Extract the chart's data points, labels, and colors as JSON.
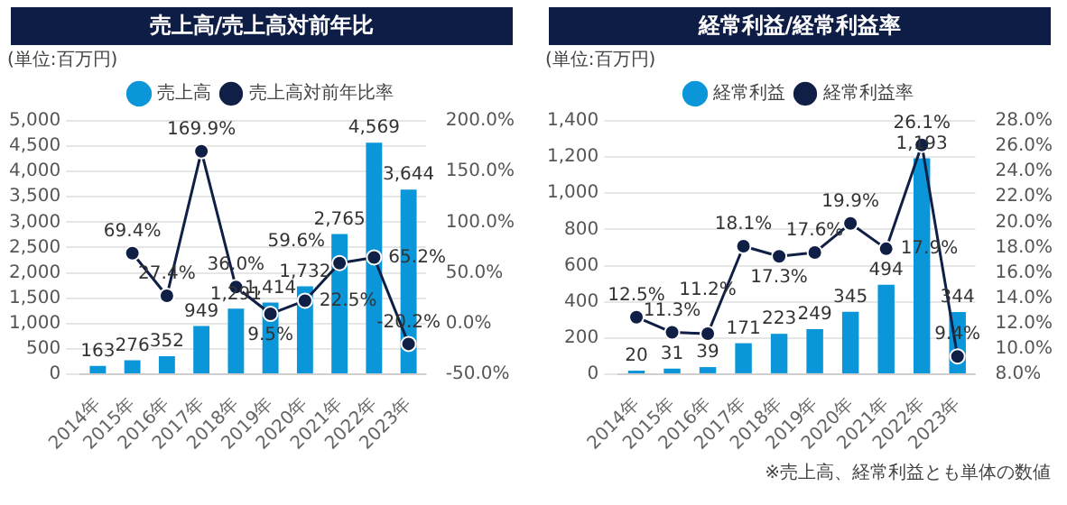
{
  "chart_data": [
    {
      "type": "bar",
      "title": "売上高/売上高対前年比",
      "ylabel": "(単位:百万円)",
      "categories": [
        "2014年",
        "2015年",
        "2016年",
        "2017年",
        "2018年",
        "2019年",
        "2020年",
        "2021年",
        "2022年",
        "2023年"
      ],
      "series": [
        {
          "name": "売上高",
          "color": "#0b96d9",
          "values": [
            163,
            276,
            352,
            949,
            1291,
            1414,
            1732,
            2765,
            4569,
            3644
          ],
          "value_labels": [
            "163",
            "276",
            "352",
            "949",
            "1,291",
            "1,414",
            "1,732",
            "2,765",
            "4,569",
            "3,644"
          ]
        },
        {
          "name": "売上高対前年比率",
          "type": "line",
          "axis": "y2",
          "color": "#0f1f45",
          "marker": "circle",
          "values": [
            null,
            69.4,
            27.4,
            169.9,
            36.0,
            9.5,
            22.5,
            59.6,
            65.2,
            -20.2
          ],
          "value_labels": [
            null,
            "69.4%",
            "27.4%",
            "169.9%",
            "36.0%",
            "9.5%",
            "22.5%",
            "59.6%",
            "65.2%",
            "-20.2%"
          ]
        }
      ],
      "ylim": [
        0,
        5000
      ],
      "yticks": [
        {
          "value": 0,
          "label": "0"
        },
        {
          "value": 500,
          "label": "500"
        },
        {
          "value": 1000,
          "label": "1,000"
        },
        {
          "value": 1500,
          "label": "1,500"
        },
        {
          "value": 2000,
          "label": "2,000"
        },
        {
          "value": 2500,
          "label": "2,500"
        },
        {
          "value": 3000,
          "label": "3,000"
        },
        {
          "value": 3500,
          "label": "3,500"
        },
        {
          "value": 4000,
          "label": "4,000"
        },
        {
          "value": 4500,
          "label": "4,500"
        },
        {
          "value": 5000,
          "label": "5,000"
        }
      ],
      "y2lim": [
        -50,
        200
      ],
      "y2ticks": [
        {
          "value": -50,
          "label": "-50.0%"
        },
        {
          "value": 0,
          "label": "0.0%"
        },
        {
          "value": 50,
          "label": "50.0%"
        },
        {
          "value": 100,
          "label": "100.0%"
        },
        {
          "value": 150,
          "label": "150.0%"
        },
        {
          "value": 200,
          "label": "200.0%"
        }
      ],
      "grid": "y",
      "legend": "top"
    },
    {
      "type": "bar",
      "title": "経常利益/経常利益率",
      "ylabel": "(単位:百万円)",
      "categories": [
        "2014年",
        "2015年",
        "2016年",
        "2017年",
        "2018年",
        "2019年",
        "2020年",
        "2021年",
        "2022年",
        "2023年"
      ],
      "series": [
        {
          "name": "経常利益",
          "color": "#0b96d9",
          "values": [
            20,
            31,
            39,
            171,
            223,
            249,
            345,
            494,
            1193,
            344
          ],
          "value_labels": [
            "20",
            "31",
            "39",
            "171",
            "223",
            "249",
            "345",
            "494",
            "1,193",
            "344"
          ]
        },
        {
          "name": "経常利益率",
          "type": "line",
          "axis": "y2",
          "color": "#0f1f45",
          "marker": "circle",
          "values": [
            12.5,
            11.3,
            11.2,
            18.1,
            17.3,
            17.6,
            19.9,
            17.9,
            26.1,
            9.4
          ],
          "value_labels": [
            "12.5%",
            "11.3%",
            "11.2%",
            "18.1%",
            "17.3%",
            "17.6%",
            "19.9%",
            "17.9%",
            "26.1%",
            "9.4%"
          ]
        }
      ],
      "ylim": [
        0,
        1400
      ],
      "yticks": [
        {
          "value": 0,
          "label": "0"
        },
        {
          "value": 200,
          "label": "200"
        },
        {
          "value": 400,
          "label": "400"
        },
        {
          "value": 600,
          "label": "600"
        },
        {
          "value": 800,
          "label": "800"
        },
        {
          "value": 1000,
          "label": "1,000"
        },
        {
          "value": 1200,
          "label": "1,200"
        },
        {
          "value": 1400,
          "label": "1,400"
        }
      ],
      "y2lim": [
        8,
        28
      ],
      "y2ticks": [
        {
          "value": 8,
          "label": "8.0%"
        },
        {
          "value": 10,
          "label": "10.0%"
        },
        {
          "value": 12,
          "label": "12.0%"
        },
        {
          "value": 14,
          "label": "14.0%"
        },
        {
          "value": 16,
          "label": "16.0%"
        },
        {
          "value": 18,
          "label": "18.0%"
        },
        {
          "value": 20,
          "label": "20.0%"
        },
        {
          "value": 22,
          "label": "22.0%"
        },
        {
          "value": 24,
          "label": "24.0%"
        },
        {
          "value": 26,
          "label": "26.0%"
        },
        {
          "value": 28,
          "label": "28.0%"
        }
      ],
      "grid": "y",
      "legend": "top",
      "annotations": [
        "※売上高、経常利益とも単体の数値"
      ]
    }
  ]
}
